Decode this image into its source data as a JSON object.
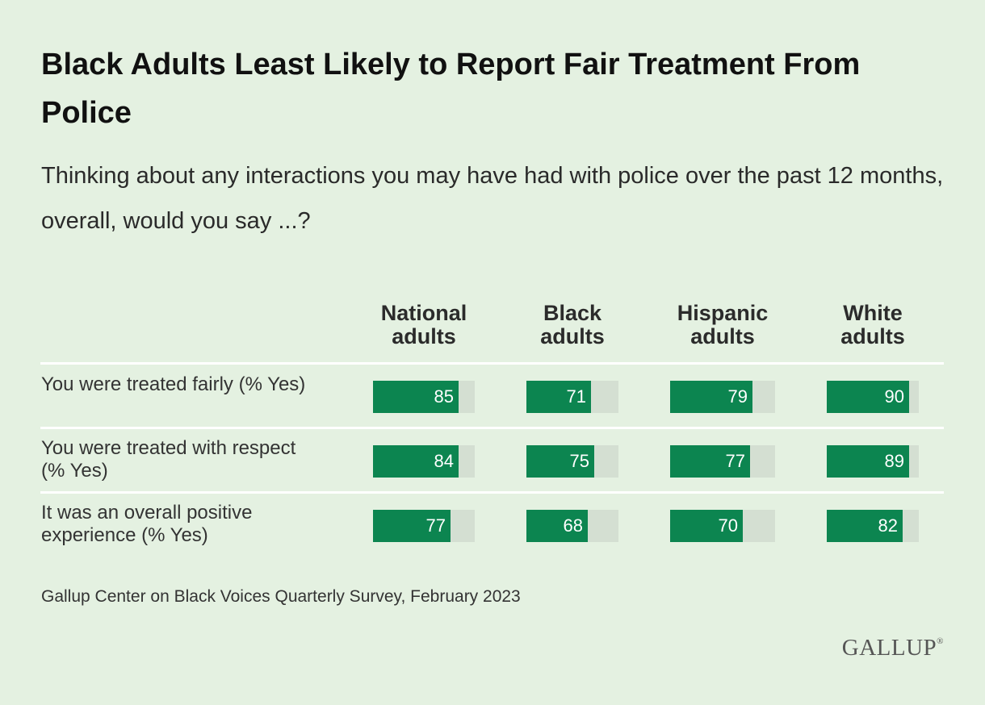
{
  "title": "Black Adults Least Likely to Report Fair Treatment From Police",
  "subtitle": "Thinking about any interactions you may have had with police over the past 12 months, overall, would you say ...?",
  "source": "Gallup Center on Black Voices Quarterly Survey, February 2023",
  "logo": "GALLUP",
  "colors": {
    "bar": "#0c8550",
    "track": "#d4dfd2",
    "background": "#e4f1e1"
  },
  "chart_data": {
    "type": "bar",
    "title": "Black Adults Least Likely to Report Fair Treatment From Police",
    "subtitle": "Thinking about any interactions you may have had with police over the past 12 months, overall, would you say ...?",
    "columns": [
      {
        "line1": "National",
        "line2": "adults"
      },
      {
        "line1": "Black",
        "line2": "adults"
      },
      {
        "line1": "Hispanic",
        "line2": "adults"
      },
      {
        "line1": "White",
        "line2": "adults"
      }
    ],
    "rows": [
      {
        "label": "You were treated fairly (% Yes)",
        "values": [
          85,
          71,
          79,
          90
        ]
      },
      {
        "label": "You were treated with respect (% Yes)",
        "values": [
          84,
          75,
          77,
          89
        ]
      },
      {
        "label": "It was an overall positive experience (% Yes)",
        "values": [
          77,
          68,
          70,
          82
        ]
      }
    ],
    "ylim": [
      0,
      100
    ],
    "grid": false
  }
}
